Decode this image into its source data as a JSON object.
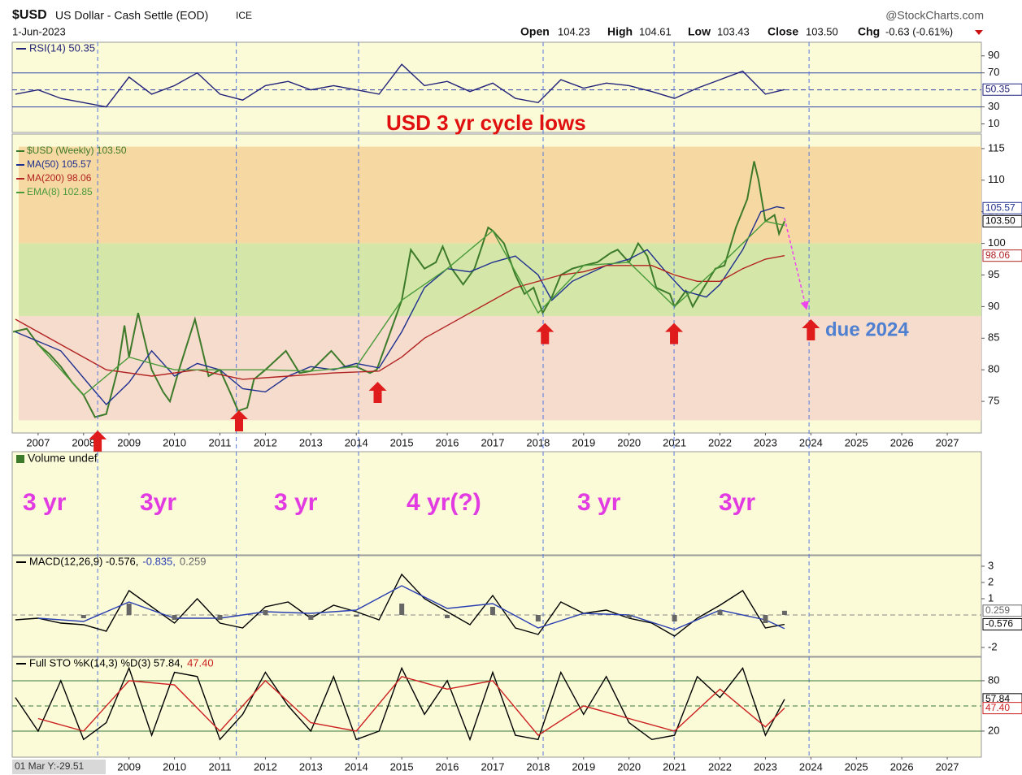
{
  "header": {
    "symbol": "$USD",
    "name": "US Dollar - Cash Settle (EOD)",
    "exchange": "ICE",
    "brand": "@StockCharts.com",
    "date": "1-Jun-2023",
    "ohlc": [
      {
        "label": "Open",
        "value": "104.23"
      },
      {
        "label": "High",
        "value": "104.61"
      },
      {
        "label": "Low",
        "value": "103.43"
      },
      {
        "label": "Close",
        "value": "103.50"
      },
      {
        "label": "Chg",
        "value": "-0.63 (-0.61%)"
      }
    ]
  },
  "chart_data": [
    {
      "type": "line",
      "legend": "inline",
      "xlim": [
        2006.43,
        2027.75
      ],
      "ylim": [
        0,
        106
      ],
      "yticks": [
        90,
        70,
        30,
        10
      ],
      "hlines": [
        70,
        30
      ],
      "dashed_hlines": [
        50
      ],
      "line_color": "#3344aa",
      "series": [
        {
          "name": "RSI(14) 50.35",
          "color": "#22227a",
          "x": [
            2006.5,
            2007,
            2007.5,
            2008,
            2008.5,
            2009,
            2009.5,
            2010,
            2010.5,
            2011,
            2011.5,
            2012,
            2012.5,
            2013,
            2013.5,
            2014,
            2014.5,
            2015,
            2015.5,
            2016,
            2016.5,
            2017,
            2017.5,
            2018,
            2018.5,
            2019,
            2019.5,
            2020,
            2020.5,
            2021,
            2021.5,
            2022,
            2022.5,
            2023,
            2023.42
          ],
          "values": [
            45,
            50,
            40,
            35,
            30,
            65,
            45,
            55,
            70,
            45,
            38,
            55,
            60,
            50,
            55,
            50,
            45,
            80,
            55,
            60,
            48,
            58,
            40,
            35,
            62,
            52,
            58,
            55,
            48,
            40,
            52,
            62,
            72,
            45,
            50.35
          ]
        }
      ],
      "value_tags": [
        {
          "value": 50.35,
          "label": "50.35",
          "color": "#22227a"
        }
      ]
    },
    {
      "type": "line",
      "legend": "stacked",
      "xlim": [
        2006.43,
        2027.75
      ],
      "ylim": [
        70,
        117.3
      ],
      "yticks": [
        75,
        80,
        85,
        90,
        95,
        100,
        105,
        110,
        115
      ],
      "xticks": [
        2007,
        2008,
        2009,
        2010,
        2011,
        2012,
        2013,
        2014,
        2015,
        2016,
        2017,
        2018,
        2019,
        2020,
        2021,
        2022,
        2023,
        2024,
        2025,
        2026,
        2027
      ],
      "zones": [
        {
          "from": 100,
          "to": 115.3,
          "color": "#f6d9a2"
        },
        {
          "from": 88.5,
          "to": 100,
          "color": "#d4e7a8"
        },
        {
          "from": 72,
          "to": 88.5,
          "color": "#f5dccc"
        }
      ],
      "series": [
        {
          "name": "$USD (Weekly) 103.50",
          "color": "#3d7a2a",
          "x": [
            2006.45,
            2006.75,
            2007.0,
            2007.25,
            2007.5,
            2007.75,
            2008.0,
            2008.25,
            2008.5,
            2008.75,
            2008.9,
            2009.0,
            2009.2,
            2009.5,
            2009.75,
            2009.9,
            2010.1,
            2010.45,
            2010.75,
            2011.0,
            2011.25,
            2011.4,
            2011.6,
            2011.75,
            2012.0,
            2012.45,
            2012.75,
            2013.0,
            2013.45,
            2013.75,
            2014.0,
            2014.3,
            2014.45,
            2014.75,
            2015.0,
            2015.2,
            2015.5,
            2015.75,
            2015.9,
            2016.1,
            2016.35,
            2016.6,
            2016.9,
            2017.0,
            2017.25,
            2017.5,
            2017.7,
            2017.9,
            2018.1,
            2018.3,
            2018.5,
            2018.75,
            2019.0,
            2019.3,
            2019.6,
            2019.75,
            2020.0,
            2020.2,
            2020.4,
            2020.6,
            2020.9,
            2021.0,
            2021.25,
            2021.4,
            2021.6,
            2021.9,
            2022.1,
            2022.35,
            2022.6,
            2022.75,
            2022.85,
            2023.0,
            2023.2,
            2023.3,
            2023.42
          ],
          "values": [
            86,
            86.5,
            84,
            82.5,
            80.5,
            78,
            76,
            72.5,
            73,
            80,
            87,
            82,
            89,
            80,
            76.5,
            75,
            80,
            88,
            79,
            80,
            76,
            73.5,
            74,
            78.5,
            80,
            83,
            79.5,
            79.8,
            83,
            80.5,
            80.5,
            79.5,
            80,
            86,
            91,
            99,
            96,
            97,
            99.5,
            96,
            93.5,
            96,
            102.5,
            102,
            100,
            95,
            92,
            93,
            89,
            91.5,
            95,
            96,
            96.5,
            97,
            98.5,
            99,
            97,
            100,
            98,
            93,
            92,
            90,
            92.5,
            90,
            92.5,
            96,
            96.5,
            102.5,
            107,
            113,
            110,
            103.5,
            104.5,
            101.5,
            103.5
          ]
        },
        {
          "name": "MA(50) 105.57",
          "color": "#1f2f8f",
          "x": [
            2006.5,
            2007.5,
            2008.2,
            2008.5,
            2009.0,
            2009.5,
            2010.0,
            2010.5,
            2011.0,
            2011.5,
            2012.0,
            2012.5,
            2013.0,
            2013.5,
            2014.0,
            2014.5,
            2015.0,
            2015.5,
            2016.0,
            2016.5,
            2017.0,
            2017.5,
            2018.0,
            2018.3,
            2018.75,
            2019.5,
            2020.0,
            2020.4,
            2020.75,
            2021.2,
            2021.7,
            2022.0,
            2022.5,
            2022.9,
            2023.25,
            2023.42
          ],
          "values": [
            86,
            83,
            77,
            74.5,
            78,
            83,
            79,
            81,
            80,
            77,
            76.5,
            79,
            80.5,
            80,
            81,
            80.3,
            86,
            93,
            96,
            95.5,
            97,
            98,
            95,
            91,
            94,
            96.5,
            97.5,
            99,
            96,
            92.5,
            91.5,
            93.5,
            99,
            105,
            105.8,
            105.57
          ]
        },
        {
          "name": "MA(200) 98.06",
          "color": "#b22222",
          "x": [
            2006.5,
            2007.5,
            2008.5,
            2009.5,
            2010.5,
            2011.5,
            2012.5,
            2013.5,
            2014.5,
            2015.0,
            2015.5,
            2016.5,
            2017.5,
            2018.5,
            2019.0,
            2019.5,
            2020.5,
            2021.0,
            2021.5,
            2022.0,
            2022.5,
            2023.0,
            2023.42
          ],
          "values": [
            88,
            84,
            80,
            79,
            80,
            78.5,
            79,
            79.5,
            79.8,
            82,
            85,
            89,
            93,
            95,
            95.5,
            96.5,
            96.5,
            95,
            94,
            94,
            96,
            97.5,
            98.06
          ]
        },
        {
          "name": "EMA(8) 102.85",
          "color": "#4a9a3a",
          "x": [
            2007,
            2008,
            2009,
            2010,
            2011,
            2012,
            2013,
            2014,
            2015,
            2016,
            2017,
            2018,
            2019,
            2020,
            2021,
            2022,
            2023,
            2023.42
          ],
          "values": [
            84,
            76,
            82,
            80,
            80,
            80,
            79.8,
            80.5,
            91,
            96,
            102,
            89,
            96.5,
            97,
            90,
            96.5,
            103.5,
            102.85
          ]
        }
      ],
      "value_tags": [
        {
          "value": 105.57,
          "label": "105.57",
          "color": "#1f2f8f"
        },
        {
          "value": 103.5,
          "label": "103.50",
          "color": "#000000"
        },
        {
          "value": 98.06,
          "label": "98.06",
          "color": "#b22222"
        }
      ],
      "cycle_lows": [
        2008.31,
        2011.36,
        2014.05,
        2018.11,
        2020.99,
        2023.96
      ],
      "cycle_color": "#5577dd",
      "arrows": {
        "color": "#e01b1b",
        "x": [
          2008.31,
          2011.42,
          2014.47,
          2018.15,
          2020.99,
          2024.0
        ],
        "y": [
          70.4,
          73.6,
          78.1,
          87.4,
          87.4,
          88.0
        ]
      },
      "projection": {
        "color": "#ee44ee",
        "x": [
          2023.42,
          2023.9
        ],
        "values": [
          104,
          89.7
        ]
      },
      "annotations": [
        {
          "text": "USD 3 yr cycle lows",
          "color": "#e01010"
        },
        {
          "text": "due 2024",
          "color": "#4f7fd0"
        }
      ]
    },
    {
      "type": "volume",
      "title": "Volume undef",
      "annotations": [
        {
          "text": "3 yr",
          "color": "#e23be2"
        },
        {
          "text": "3yr",
          "color": "#e23be2"
        },
        {
          "text": "3 yr",
          "color": "#e23be2"
        },
        {
          "text": "4 yr(?)",
          "color": "#e23be2"
        },
        {
          "text": "3 yr",
          "color": "#e23be2"
        },
        {
          "text": "3yr",
          "color": "#e23be2"
        }
      ]
    },
    {
      "type": "line",
      "legend": "inline",
      "xlim": [
        2006.43,
        2027.75
      ],
      "ylim": [
        -2.55,
        3.65
      ],
      "yticks": [
        3,
        2,
        1,
        -2
      ],
      "dashed_hlines": [
        0
      ],
      "line_color": "#888888",
      "series": [
        {
          "name": "MACD(12,26,9) -0.576,",
          "color": "#000000",
          "x": [
            2006.5,
            2007,
            2007.5,
            2008,
            2008.5,
            2009,
            2009.5,
            2010,
            2010.5,
            2011,
            2011.5,
            2012,
            2012.5,
            2013,
            2013.5,
            2014,
            2014.5,
            2015,
            2015.5,
            2016,
            2016.5,
            2017,
            2017.5,
            2018,
            2018.5,
            2019,
            2019.5,
            2020,
            2020.5,
            2021,
            2021.5,
            2022,
            2022.5,
            2023,
            2023.42
          ],
          "values": [
            -0.3,
            -0.2,
            -0.5,
            -0.6,
            -1,
            1.5,
            0.5,
            -0.5,
            1,
            -0.5,
            -0.8,
            0.5,
            0.8,
            -0.2,
            0.6,
            0.2,
            -0.3,
            2.5,
            1,
            0.2,
            -0.6,
            1.2,
            -0.8,
            -1.2,
            0.8,
            0.1,
            0.3,
            -0.2,
            -0.5,
            -1.3,
            -0.2,
            0.6,
            1.5,
            -0.8,
            -0.576
          ]
        },
        {
          "name": "-0.835,",
          "color": "#2a3fb0",
          "x": [
            2007,
            2008,
            2009,
            2010,
            2011,
            2012,
            2013,
            2014,
            2015,
            2016,
            2017,
            2018,
            2019,
            2020,
            2021,
            2022,
            2023,
            2023.42
          ],
          "values": [
            -0.2,
            -0.4,
            0.8,
            -0.2,
            -0.2,
            0.2,
            0.1,
            0.3,
            1.8,
            0.4,
            0.7,
            -0.8,
            0.1,
            0,
            -0.9,
            0.3,
            -0.3,
            -0.835
          ]
        },
        {
          "name": "0.259",
          "color": "#666666",
          "style": "bar",
          "x": [
            2007,
            2008,
            2009,
            2010,
            2011,
            2012,
            2013,
            2014,
            2015,
            2016,
            2017,
            2018,
            2019,
            2020,
            2021,
            2022,
            2023,
            2023.42
          ],
          "values": [
            0,
            -0.2,
            0.7,
            -0.3,
            -0.3,
            0.3,
            -0.3,
            -0.1,
            0.7,
            -0.2,
            0.5,
            -0.4,
            0,
            -0.2,
            -0.4,
            0.3,
            -0.5,
            0.259
          ]
        }
      ],
      "value_tags": [
        {
          "value": 0.259,
          "label": "0.259",
          "color": "#666666"
        },
        {
          "value": -0.576,
          "label": "-0.576",
          "color": "#000000"
        }
      ]
    },
    {
      "type": "line",
      "legend": "inline",
      "xlim": [
        2006.43,
        2027.75
      ],
      "ylim": [
        -11,
        108
      ],
      "yticks": [
        80,
        20
      ],
      "hlines": [
        80,
        20
      ],
      "dashed_hlines": [
        50
      ],
      "line_color": "#3b7a3b",
      "xticks": [
        2009,
        2010,
        2011,
        2012,
        2013,
        2014,
        2015,
        2016,
        2017,
        2018,
        2019,
        2020,
        2021,
        2022,
        2023,
        2024,
        2025,
        2026,
        2027
      ],
      "cursor_label": "01 Mar Y:-29.51",
      "series": [
        {
          "name": "Full STO %K(14,3) %D(3) 57.84,",
          "color": "#000000",
          "x": [
            2006.5,
            2007,
            2007.5,
            2008,
            2008.5,
            2009,
            2009.5,
            2010,
            2010.5,
            2011,
            2011.5,
            2012,
            2012.5,
            2013,
            2013.5,
            2014,
            2014.5,
            2015,
            2015.5,
            2016,
            2016.5,
            2017,
            2017.5,
            2018,
            2018.5,
            2019,
            2019.5,
            2020,
            2020.5,
            2021,
            2021.5,
            2022,
            2022.5,
            2023,
            2023.42
          ],
          "values": [
            60,
            20,
            80,
            10,
            30,
            95,
            15,
            90,
            85,
            10,
            40,
            90,
            50,
            20,
            85,
            10,
            20,
            95,
            40,
            80,
            10,
            90,
            15,
            10,
            90,
            40,
            85,
            30,
            10,
            15,
            85,
            60,
            95,
            15,
            57.84
          ]
        },
        {
          "name": "47.40",
          "color": "#cc2020",
          "x": [
            2007,
            2008,
            2009,
            2010,
            2011,
            2012,
            2013,
            2014,
            2015,
            2016,
            2017,
            2018,
            2019,
            2020,
            2021,
            2022,
            2023,
            2023.42
          ],
          "values": [
            35,
            20,
            80,
            75,
            20,
            80,
            30,
            20,
            85,
            70,
            80,
            15,
            50,
            35,
            20,
            70,
            25,
            47.4
          ]
        }
      ],
      "value_tags": [
        {
          "value": 57.84,
          "label": "57.84",
          "color": "#000000"
        },
        {
          "value": 47.4,
          "label": "47.40",
          "color": "#cc2020"
        }
      ]
    }
  ]
}
